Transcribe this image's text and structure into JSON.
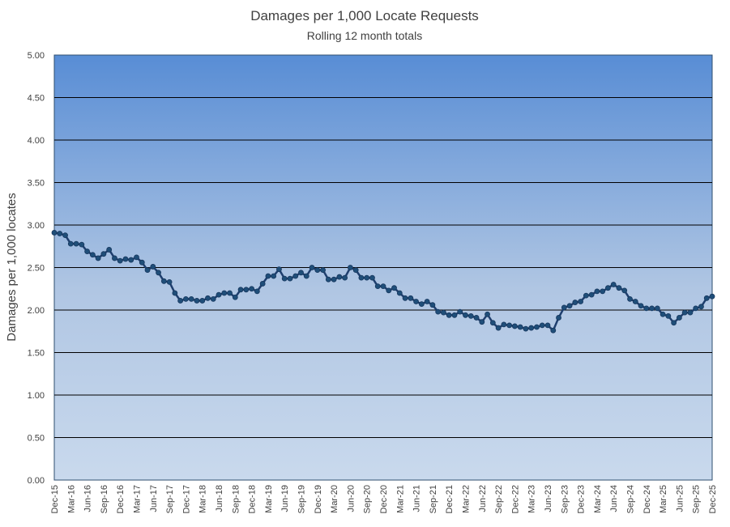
{
  "chart_data": {
    "type": "line",
    "title": "Damages per 1,000 Locate Requests",
    "subtitle": "Rolling 12 month totals",
    "xlabel": "",
    "ylabel": "Damages per 1,000 locates",
    "ylim": [
      0,
      5
    ],
    "yticks": [
      "0.00",
      "0.50",
      "1.00",
      "1.50",
      "2.00",
      "2.50",
      "3.00",
      "3.50",
      "4.00",
      "4.50",
      "5.00"
    ],
    "grid": true,
    "legend": "none",
    "colors": {
      "line": "#1F3F6E",
      "marker": "#1F4E79",
      "bg_top": "#588DD5",
      "bg_bottom": "#C9D9ED",
      "grid": "#000000"
    },
    "x": [
      "Dec-15",
      "Jan-16",
      "Feb-16",
      "Mar-16",
      "Apr-16",
      "May-16",
      "Jun-16",
      "Jul-16",
      "Aug-16",
      "Sep-16",
      "Oct-16",
      "Nov-16",
      "Dec-16",
      "Jan-17",
      "Feb-17",
      "Mar-17",
      "Apr-17",
      "May-17",
      "Jun-17",
      "Jul-17",
      "Aug-17",
      "Sep-17",
      "Oct-17",
      "Nov-17",
      "Dec-17",
      "Jan-18",
      "Feb-18",
      "Mar-18",
      "Apr-18",
      "May-18",
      "Jun-18",
      "Jul-18",
      "Aug-18",
      "Sep-18",
      "Oct-18",
      "Nov-18",
      "Dec-18",
      "Jan-19",
      "Feb-19",
      "Mar-19",
      "Apr-19",
      "May-19",
      "Jun-19",
      "Jul-19",
      "Aug-19",
      "Sep-19",
      "Oct-19",
      "Nov-19",
      "Dec-19",
      "Jan-20",
      "Feb-20",
      "Mar-20",
      "Apr-20",
      "May-20",
      "Jun-20",
      "Jul-20",
      "Aug-20",
      "Sep-20",
      "Oct-20",
      "Nov-20",
      "Dec-20",
      "Jan-21",
      "Feb-21",
      "Mar-21",
      "Apr-21",
      "May-21",
      "Jun-21",
      "Jul-21",
      "Aug-21",
      "Sep-21",
      "Oct-21",
      "Nov-21",
      "Dec-21",
      "Jan-22",
      "Feb-22",
      "Mar-22",
      "Apr-22",
      "May-22",
      "Jun-22",
      "Jul-22",
      "Aug-22",
      "Sep-22",
      "Oct-22",
      "Nov-22",
      "Dec-22",
      "Jan-23",
      "Feb-23",
      "Mar-23",
      "Apr-23",
      "May-23",
      "Jun-23",
      "Jul-23",
      "Aug-23",
      "Sep-23",
      "Oct-23",
      "Nov-23",
      "Dec-23",
      "Jan-24",
      "Feb-24",
      "Mar-24",
      "Apr-24",
      "May-24",
      "Jun-24",
      "Jul-24",
      "Aug-24",
      "Sep-24",
      "Oct-24",
      "Nov-24",
      "Dec-24",
      "Jan-25",
      "Feb-25",
      "Mar-25",
      "Apr-25",
      "May-25",
      "Jun-25",
      "Jul-25",
      "Aug-25",
      "Sep-25",
      "Oct-25",
      "Nov-25",
      "Dec-25"
    ],
    "values": [
      2.91,
      2.9,
      2.88,
      2.78,
      2.78,
      2.77,
      2.69,
      2.65,
      2.61,
      2.66,
      2.71,
      2.61,
      2.58,
      2.6,
      2.59,
      2.62,
      2.56,
      2.47,
      2.51,
      2.44,
      2.34,
      2.33,
      2.2,
      2.11,
      2.13,
      2.13,
      2.11,
      2.11,
      2.14,
      2.13,
      2.18,
      2.2,
      2.2,
      2.15,
      2.24,
      2.24,
      2.25,
      2.22,
      2.31,
      2.4,
      2.4,
      2.48,
      2.37,
      2.37,
      2.4,
      2.44,
      2.4,
      2.5,
      2.47,
      2.47,
      2.36,
      2.36,
      2.39,
      2.38,
      2.5,
      2.47,
      2.38,
      2.38,
      2.38,
      2.28,
      2.28,
      2.23,
      2.26,
      2.2,
      2.14,
      2.14,
      2.1,
      2.07,
      2.1,
      2.06,
      1.98,
      1.97,
      1.94,
      1.94,
      1.98,
      1.94,
      1.93,
      1.91,
      1.86,
      1.95,
      1.85,
      1.79,
      1.83,
      1.82,
      1.81,
      1.8,
      1.78,
      1.79,
      1.8,
      1.82,
      1.82,
      1.76,
      1.91,
      2.03,
      2.05,
      2.09,
      2.1,
      2.17,
      2.18,
      2.22,
      2.22,
      2.26,
      2.3,
      2.26,
      2.23,
      2.13,
      2.1,
      2.05,
      2.02,
      2.02,
      2.02,
      1.95,
      1.93,
      1.85,
      1.91,
      1.97,
      1.97,
      2.02,
      2.04,
      2.14,
      2.16
    ],
    "xtick_every": 3
  }
}
